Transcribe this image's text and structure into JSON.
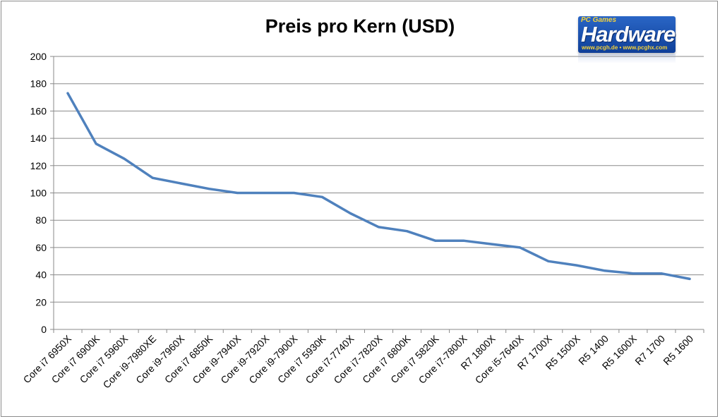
{
  "brand": {
    "prefix": "PC Games",
    "name": "Hardware",
    "urls": "www.pcgh.de • www.pcghx.com"
  },
  "chart_data": {
    "type": "line",
    "title": "Preis pro Kern (USD)",
    "xlabel": "",
    "ylabel": "",
    "ylim": [
      0,
      200
    ],
    "yticks": [
      0,
      20,
      40,
      60,
      80,
      100,
      120,
      140,
      160,
      180,
      200
    ],
    "grid": true,
    "legend": "none",
    "line_color": "#4f81bd",
    "categories": [
      "Core i7 6950X",
      "Core i7 6900K",
      "Core i7 5960X",
      "Core i9-7980XE",
      "Core i9-7960X",
      "Core i7 6850K",
      "Core i9-7940X",
      "Core i9-7920X",
      "Core i9-7900X",
      "Core i7 5930K",
      "Core i7-7740X",
      "Core i7-7820X",
      "Core i7 6800K",
      "Core i7 5820K",
      "Core i7-7800X",
      "R7 1800X",
      "Core i5-7640X",
      "R7 1700X",
      "R5 1500X",
      "R5 1400",
      "R5 1600X",
      "R7 1700",
      "R5 1600"
    ],
    "values": [
      173,
      136,
      125,
      111,
      107,
      103,
      100,
      100,
      100,
      97,
      85,
      75,
      72,
      65,
      65,
      62.5,
      60,
      50,
      47,
      43,
      41,
      41,
      37
    ]
  }
}
